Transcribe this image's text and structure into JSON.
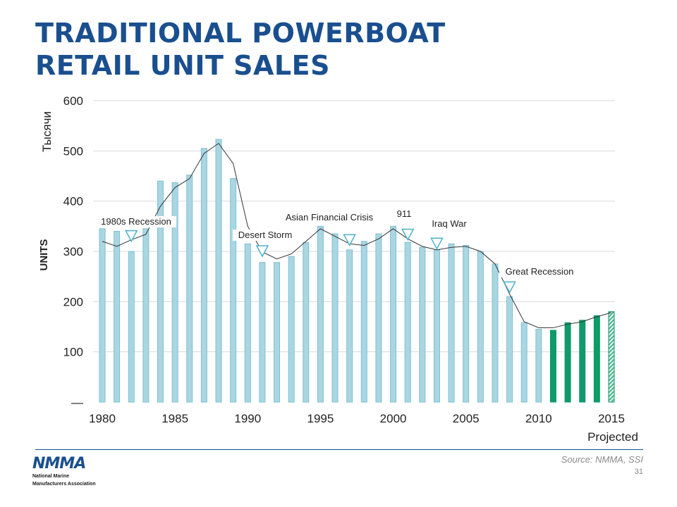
{
  "title": [
    "TRADITIONAL POWERBOAT",
    "RETAIL UNIT SALES"
  ],
  "source": "Source: NMMA, SSI",
  "page_number": "31",
  "logo": {
    "mark": "NMMA",
    "lines": [
      "National Marine",
      "Manufacturers Association"
    ]
  },
  "colors": {
    "bar": "#a9d6e2",
    "bar_edge": "#7fbfd1",
    "projected": "#0f9a6a",
    "title": "#1a4f8f",
    "trend": "#333333",
    "marker": "#4bb0c8"
  },
  "chart_data": {
    "type": "bar",
    "ylabel": "UNITS",
    "yunit_label": "Тысячи",
    "ylim": [
      0,
      600
    ],
    "yticks": [
      {
        "value": 0,
        "label": "—"
      },
      {
        "value": 100,
        "label": "100"
      },
      {
        "value": 200,
        "label": "200"
      },
      {
        "value": 300,
        "label": "300"
      },
      {
        "value": 400,
        "label": "400"
      },
      {
        "value": 500,
        "label": "500"
      },
      {
        "value": 600,
        "label": "600"
      }
    ],
    "xticks": [
      1980,
      1985,
      1990,
      1995,
      2000,
      2005,
      2010,
      2015
    ],
    "projected_label": "Projected",
    "grid": true,
    "years": [
      1980,
      1981,
      1982,
      1983,
      1984,
      1985,
      1986,
      1987,
      1988,
      1989,
      1990,
      1991,
      1992,
      1993,
      1994,
      1995,
      1996,
      1997,
      1998,
      1999,
      2000,
      2001,
      2002,
      2003,
      2004,
      2005,
      2006,
      2007,
      2008,
      2009,
      2010,
      2011,
      2012,
      2013,
      2014,
      2015
    ],
    "values": [
      345,
      340,
      300,
      345,
      440,
      437,
      452,
      505,
      523,
      445,
      315,
      278,
      278,
      290,
      318,
      350,
      335,
      303,
      320,
      335,
      350,
      318,
      308,
      303,
      315,
      312,
      300,
      275,
      210,
      158,
      145,
      143,
      158,
      163,
      172,
      180
    ],
    "series_style": [
      "historical",
      "historical",
      "historical",
      "historical",
      "historical",
      "historical",
      "historical",
      "historical",
      "historical",
      "historical",
      "historical",
      "historical",
      "historical",
      "historical",
      "historical",
      "historical",
      "historical",
      "historical",
      "historical",
      "historical",
      "historical",
      "historical",
      "historical",
      "historical",
      "historical",
      "historical",
      "historical",
      "historical",
      "historical",
      "historical",
      "historical",
      "projected",
      "projected",
      "projected",
      "projected",
      "projected-hatched"
    ],
    "trend_line": [
      320,
      310,
      323,
      334,
      390,
      427,
      445,
      495,
      515,
      475,
      350,
      299,
      285,
      295,
      320,
      345,
      330,
      315,
      312,
      325,
      345,
      325,
      310,
      303,
      308,
      310,
      300,
      275,
      215,
      160,
      148,
      148,
      155,
      160,
      170,
      178
    ],
    "annotations": [
      {
        "label": "1980s Recession",
        "year": 1982.0,
        "marker_y": 330
      },
      {
        "label": "Desert Storm",
        "year": 1991.0,
        "marker_y": 300
      },
      {
        "label": "Asian Financial Crisis",
        "year": 1997.0,
        "marker_y": 322
      },
      {
        "label": "911",
        "year": 2001.0,
        "marker_y": 333
      },
      {
        "label": "Iraq War",
        "year": 2003.0,
        "marker_y": 315
      },
      {
        "label": "Great Recession",
        "year": 2008.0,
        "marker_y": 228
      }
    ]
  }
}
